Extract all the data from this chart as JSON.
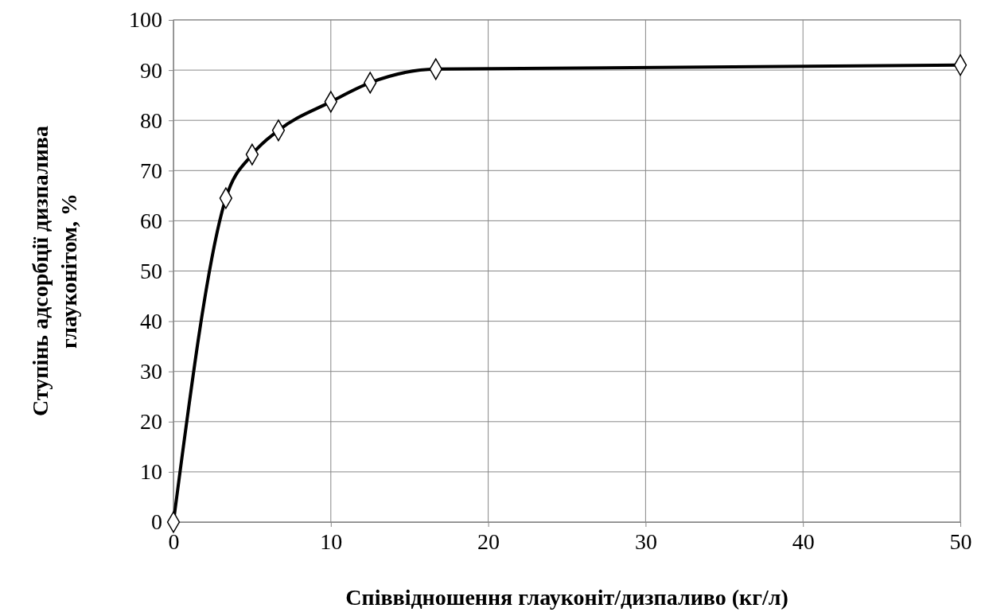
{
  "chart_data": {
    "type": "line",
    "xlabel": "Співвідношення глауконіт/дизпаливо (кг/л)",
    "ylabel": "Ступінь адсорбції дизпалива\nглауконітом, %",
    "x": [
      0,
      3.33,
      5,
      6.67,
      10,
      12.5,
      16.67,
      50
    ],
    "series": [
      {
        "color": "#000000",
        "values": [
          0,
          64.5,
          73.2,
          78,
          83.7,
          87.5,
          90.2,
          91
        ]
      }
    ],
    "xlim": [
      0,
      50
    ],
    "xticks": [
      0,
      10,
      20,
      30,
      40,
      50
    ],
    "ylim": [
      0,
      100
    ],
    "yticks": [
      0,
      10,
      20,
      30,
      40,
      50,
      60,
      70,
      80,
      90,
      100
    ],
    "grid": true,
    "marker": "diamond",
    "line_style": "solid"
  }
}
